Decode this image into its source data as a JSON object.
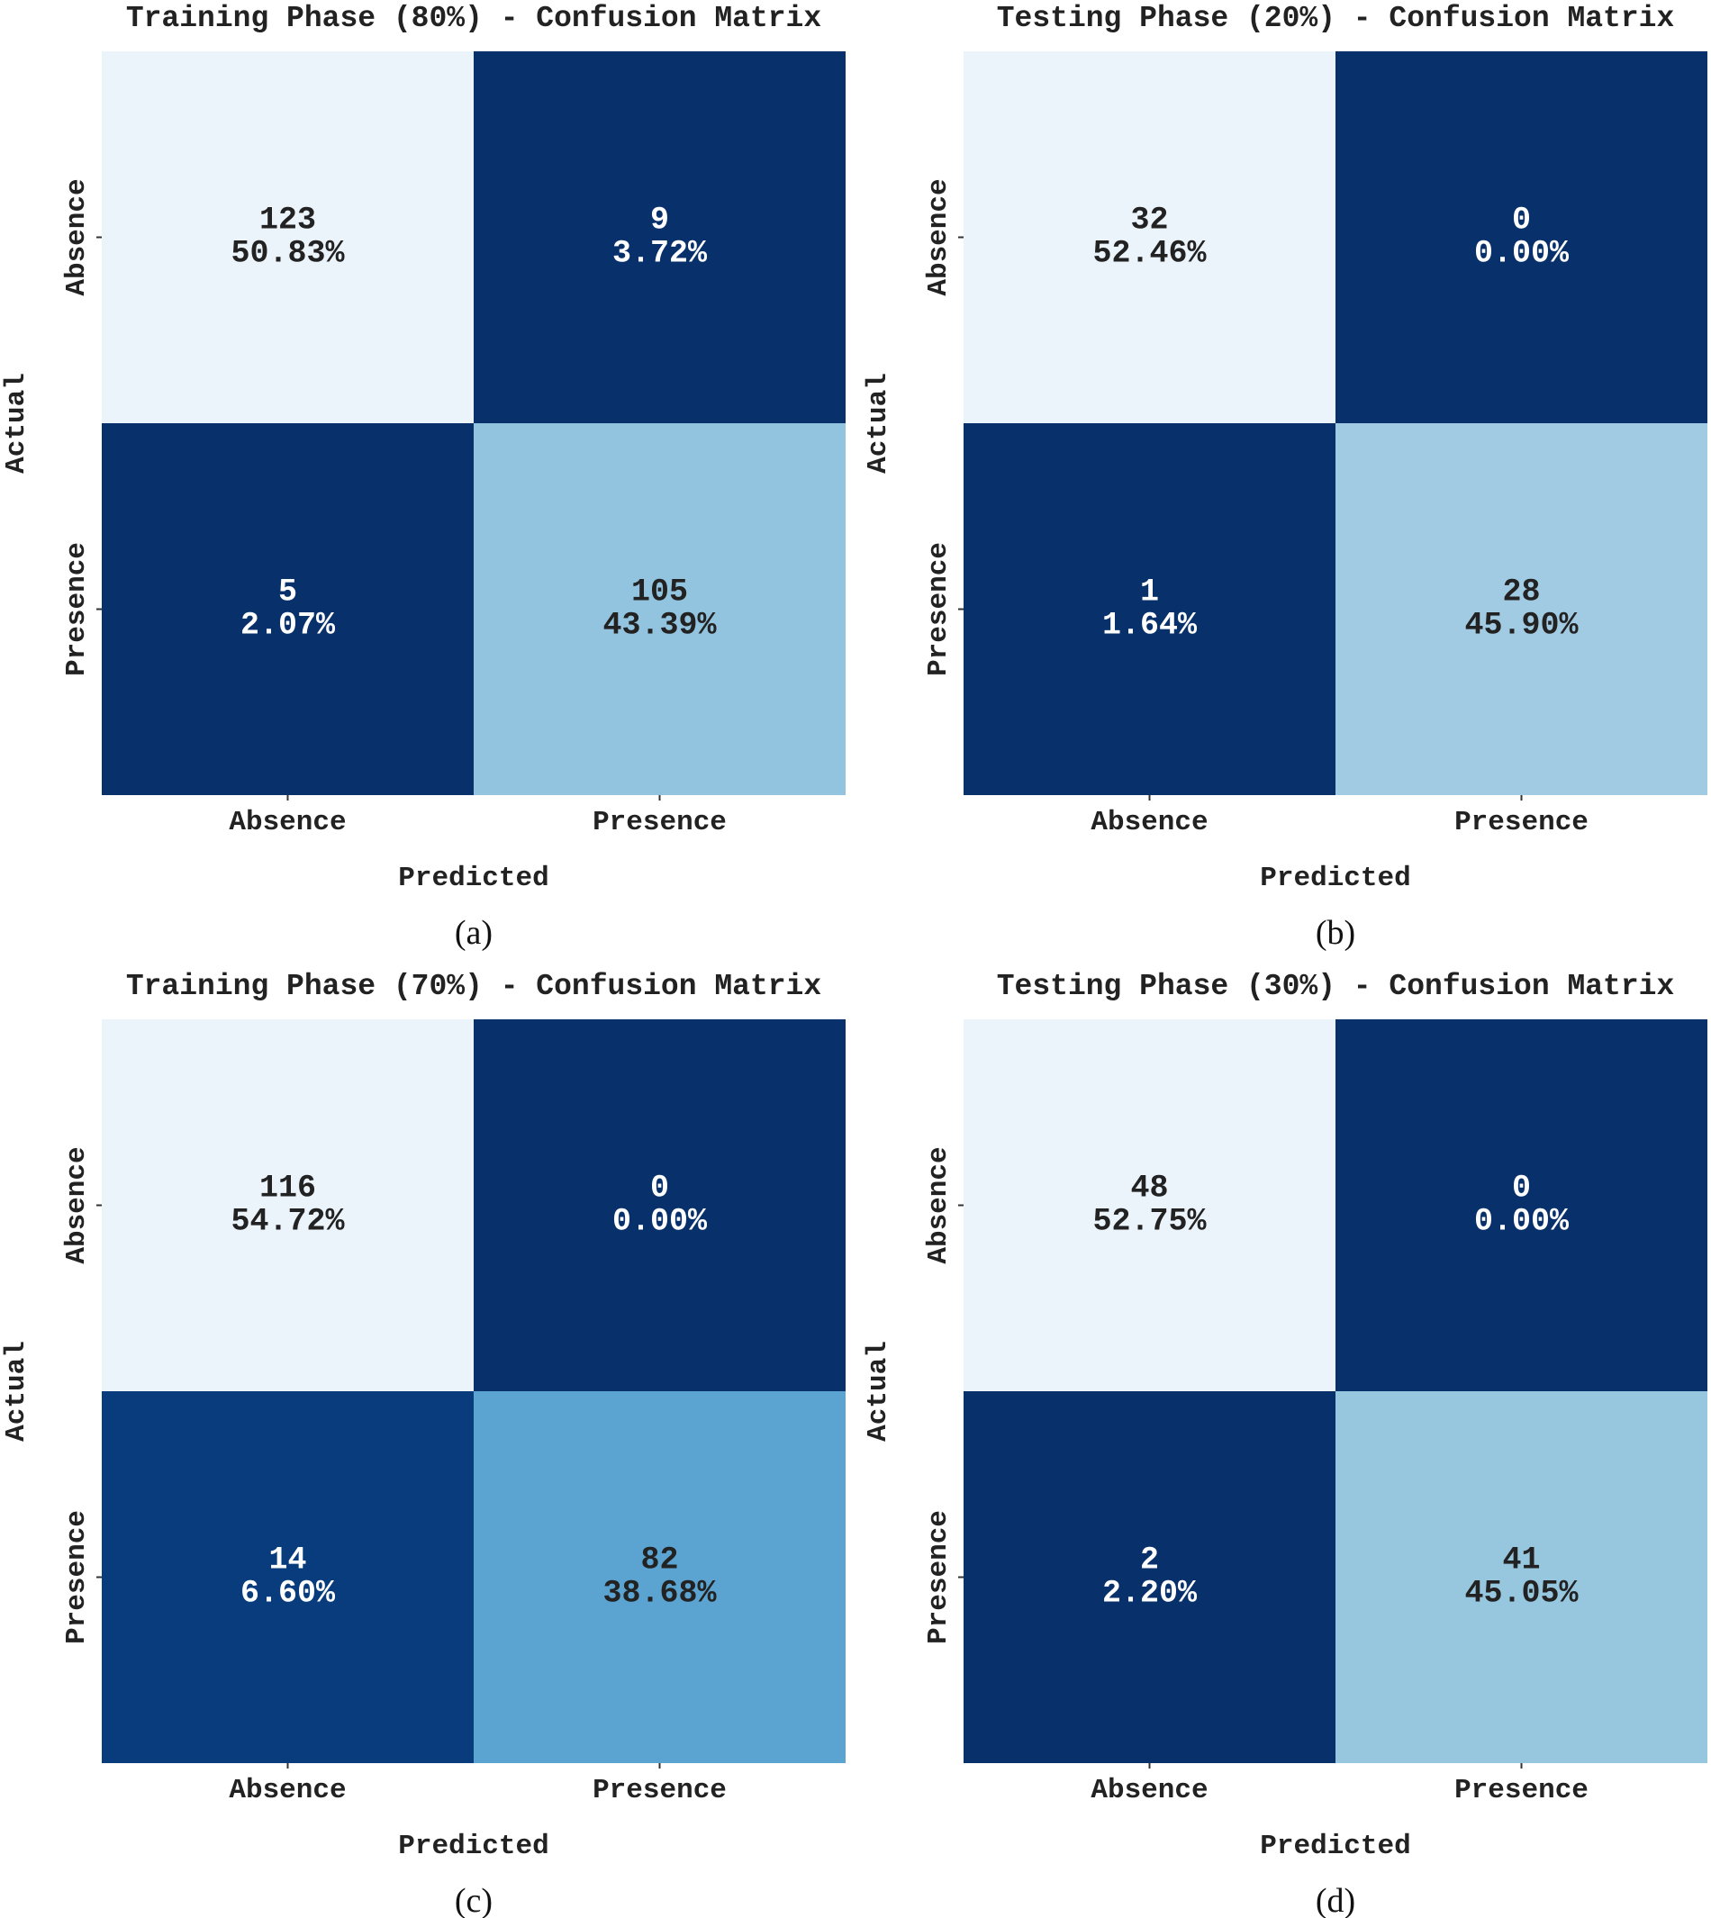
{
  "chart_data": [
    {
      "type": "heatmap",
      "panel_id": "a",
      "caption": "(a)",
      "title": "Training Phase (80%) - Confusion Matrix",
      "xlabel": "Predicted",
      "ylabel": "Actual",
      "x_categories": [
        "Absence",
        "Presence"
      ],
      "y_categories": [
        "Absence",
        "Presence"
      ],
      "matrix": [
        [
          123,
          9
        ],
        [
          5,
          105
        ]
      ],
      "percent_labels": [
        [
          "50.83%",
          "3.72%"
        ],
        [
          "2.07%",
          "43.39%"
        ]
      ]
    },
    {
      "type": "heatmap",
      "panel_id": "b",
      "caption": "(b)",
      "title": "Testing Phase (20%) - Confusion Matrix",
      "xlabel": "Predicted",
      "ylabel": "Actual",
      "x_categories": [
        "Absence",
        "Presence"
      ],
      "y_categories": [
        "Absence",
        "Presence"
      ],
      "matrix": [
        [
          32,
          0
        ],
        [
          1,
          28
        ]
      ],
      "percent_labels": [
        [
          "52.46%",
          "0.00%"
        ],
        [
          "1.64%",
          "45.90%"
        ]
      ]
    },
    {
      "type": "heatmap",
      "panel_id": "c",
      "caption": "(c)",
      "title": "Training Phase (70%) - Confusion Matrix",
      "xlabel": "Predicted",
      "ylabel": "Actual",
      "x_categories": [
        "Absence",
        "Presence"
      ],
      "y_categories": [
        "Absence",
        "Presence"
      ],
      "matrix": [
        [
          116,
          0
        ],
        [
          14,
          82
        ]
      ],
      "percent_labels": [
        [
          "54.72%",
          "0.00%"
        ],
        [
          "6.60%",
          "38.68%"
        ]
      ]
    },
    {
      "type": "heatmap",
      "panel_id": "d",
      "caption": "(d)",
      "title": "Testing Phase (30%) - Confusion Matrix",
      "xlabel": "Predicted",
      "ylabel": "Actual",
      "x_categories": [
        "Absence",
        "Presence"
      ],
      "y_categories": [
        "Absence",
        "Presence"
      ],
      "matrix": [
        [
          48,
          0
        ],
        [
          2,
          41
        ]
      ],
      "percent_labels": [
        [
          "52.75%",
          "0.00%"
        ],
        [
          "2.20%",
          "45.05%"
        ]
      ]
    }
  ],
  "colors": {
    "colormap": "Blues",
    "light_text": "#ffffff",
    "dark_text": "#222222"
  }
}
